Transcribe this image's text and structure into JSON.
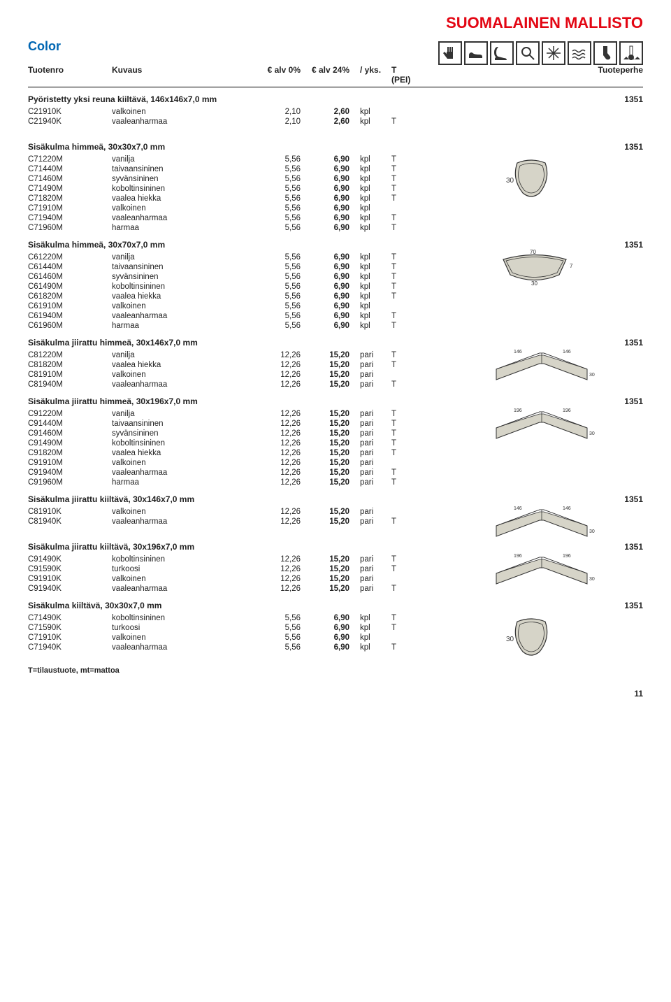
{
  "page_title": "SUOMALAINEN MALLISTO",
  "color_label": "Color",
  "headers": {
    "code": "Tuotenro",
    "desc": "Kuvaus",
    "price0": "€ alv 0%",
    "price24": "€ alv 24%",
    "unit": "/ yks.",
    "t": "T (PEI)",
    "family": "Tuoteperhe"
  },
  "footer": "T=tilaustuote, mt=mattoa",
  "page_num": "11",
  "sections": [
    {
      "title": "Pyöristetty yksi reuna kiiltävä, 146x146x7,0 mm",
      "family": "1351",
      "rows": [
        {
          "code": "C21910K",
          "desc": "valkoinen",
          "p1": "2,10",
          "p2": "2,60",
          "unit": "kpl",
          "t": ""
        },
        {
          "code": "C21940K",
          "desc": "vaaleanharmaa",
          "p1": "2,10",
          "p2": "2,60",
          "unit": "kpl",
          "t": "T"
        }
      ]
    },
    {
      "title": "Sisäkulma himmeä, 30x30x7,0 mm",
      "family": "1351",
      "diagram": "tri30",
      "rows": [
        {
          "code": "C71220M",
          "desc": "vanilja",
          "p1": "5,56",
          "p2": "6,90",
          "unit": "kpl",
          "t": "T"
        },
        {
          "code": "C71440M",
          "desc": "taivaansininen",
          "p1": "5,56",
          "p2": "6,90",
          "unit": "kpl",
          "t": "T"
        },
        {
          "code": "C71460M",
          "desc": "syvänsininen",
          "p1": "5,56",
          "p2": "6,90",
          "unit": "kpl",
          "t": "T"
        },
        {
          "code": "C71490M",
          "desc": "koboltinsininen",
          "p1": "5,56",
          "p2": "6,90",
          "unit": "kpl",
          "t": "T"
        },
        {
          "code": "C71820M",
          "desc": "vaalea hiekka",
          "p1": "5,56",
          "p2": "6,90",
          "unit": "kpl",
          "t": "T"
        },
        {
          "code": "C71910M",
          "desc": "valkoinen",
          "p1": "5,56",
          "p2": "6,90",
          "unit": "kpl",
          "t": ""
        },
        {
          "code": "C71940M",
          "desc": "vaaleanharmaa",
          "p1": "5,56",
          "p2": "6,90",
          "unit": "kpl",
          "t": "T"
        },
        {
          "code": "C71960M",
          "desc": "harmaa",
          "p1": "5,56",
          "p2": "6,90",
          "unit": "kpl",
          "t": "T"
        }
      ]
    },
    {
      "title": "Sisäkulma himmeä, 30x70x7,0 mm",
      "family": "1351",
      "diagram": "penta",
      "rows": [
        {
          "code": "C61220M",
          "desc": "vanilja",
          "p1": "5,56",
          "p2": "6,90",
          "unit": "kpl",
          "t": "T"
        },
        {
          "code": "C61440M",
          "desc": "taivaansininen",
          "p1": "5,56",
          "p2": "6,90",
          "unit": "kpl",
          "t": "T"
        },
        {
          "code": "C61460M",
          "desc": "syvänsininen",
          "p1": "5,56",
          "p2": "6,90",
          "unit": "kpl",
          "t": "T"
        },
        {
          "code": "C61490M",
          "desc": "koboltinsininen",
          "p1": "5,56",
          "p2": "6,90",
          "unit": "kpl",
          "t": "T"
        },
        {
          "code": "C61820M",
          "desc": "vaalea hiekka",
          "p1": "5,56",
          "p2": "6,90",
          "unit": "kpl",
          "t": "T"
        },
        {
          "code": "C61910M",
          "desc": "valkoinen",
          "p1": "5,56",
          "p2": "6,90",
          "unit": "kpl",
          "t": ""
        },
        {
          "code": "C61940M",
          "desc": "vaaleanharmaa",
          "p1": "5,56",
          "p2": "6,90",
          "unit": "kpl",
          "t": "T"
        },
        {
          "code": "C61960M",
          "desc": "harmaa",
          "p1": "5,56",
          "p2": "6,90",
          "unit": "kpl",
          "t": "T"
        }
      ]
    },
    {
      "title": "Sisäkulma jiirattu himmeä, 30x146x7,0 mm",
      "family": "1351",
      "diagram": "corner146",
      "rows": [
        {
          "code": "C81220M",
          "desc": "vanilja",
          "p1": "12,26",
          "p2": "15,20",
          "unit": "pari",
          "t": "T"
        },
        {
          "code": "C81820M",
          "desc": "vaalea hiekka",
          "p1": "12,26",
          "p2": "15,20",
          "unit": "pari",
          "t": "T"
        },
        {
          "code": "C81910M",
          "desc": "valkoinen",
          "p1": "12,26",
          "p2": "15,20",
          "unit": "pari",
          "t": ""
        },
        {
          "code": "C81940M",
          "desc": "vaaleanharmaa",
          "p1": "12,26",
          "p2": "15,20",
          "unit": "pari",
          "t": "T"
        }
      ]
    },
    {
      "title": "Sisäkulma jiirattu himmeä, 30x196x7,0 mm",
      "family": "1351",
      "diagram": "corner196",
      "rows": [
        {
          "code": "C91220M",
          "desc": "vanilja",
          "p1": "12,26",
          "p2": "15,20",
          "unit": "pari",
          "t": "T"
        },
        {
          "code": "C91440M",
          "desc": "taivaansininen",
          "p1": "12,26",
          "p2": "15,20",
          "unit": "pari",
          "t": "T"
        },
        {
          "code": "C91460M",
          "desc": "syvänsininen",
          "p1": "12,26",
          "p2": "15,20",
          "unit": "pari",
          "t": "T"
        },
        {
          "code": "C91490M",
          "desc": "koboltinsininen",
          "p1": "12,26",
          "p2": "15,20",
          "unit": "pari",
          "t": "T"
        },
        {
          "code": "C91820M",
          "desc": "vaalea hiekka",
          "p1": "12,26",
          "p2": "15,20",
          "unit": "pari",
          "t": "T"
        },
        {
          "code": "C91910M",
          "desc": "valkoinen",
          "p1": "12,26",
          "p2": "15,20",
          "unit": "pari",
          "t": ""
        },
        {
          "code": "C91940M",
          "desc": "vaaleanharmaa",
          "p1": "12,26",
          "p2": "15,20",
          "unit": "pari",
          "t": "T"
        },
        {
          "code": "C91960M",
          "desc": "harmaa",
          "p1": "12,26",
          "p2": "15,20",
          "unit": "pari",
          "t": "T"
        }
      ]
    },
    {
      "title": "Sisäkulma jiirattu kiiltävä, 30x146x7,0 mm",
      "family": "1351",
      "diagram": "corner146b",
      "rows": [
        {
          "code": "C81910K",
          "desc": "valkoinen",
          "p1": "12,26",
          "p2": "15,20",
          "unit": "pari",
          "t": ""
        },
        {
          "code": "C81940K",
          "desc": "vaaleanharmaa",
          "p1": "12,26",
          "p2": "15,20",
          "unit": "pari",
          "t": "T"
        }
      ]
    },
    {
      "title": "Sisäkulma jiirattu kiiltävä, 30x196x7,0 mm",
      "family": "1351",
      "diagram": "corner196b",
      "rows": [
        {
          "code": "C91490K",
          "desc": "koboltinsininen",
          "p1": "12,26",
          "p2": "15,20",
          "unit": "pari",
          "t": "T"
        },
        {
          "code": "C91590K",
          "desc": "turkoosi",
          "p1": "12,26",
          "p2": "15,20",
          "unit": "pari",
          "t": "T"
        },
        {
          "code": "C91910K",
          "desc": "valkoinen",
          "p1": "12,26",
          "p2": "15,20",
          "unit": "pari",
          "t": ""
        },
        {
          "code": "C91940K",
          "desc": "vaaleanharmaa",
          "p1": "12,26",
          "p2": "15,20",
          "unit": "pari",
          "t": "T"
        }
      ]
    },
    {
      "title": "Sisäkulma kiiltävä, 30x30x7,0 mm",
      "family": "1351",
      "diagram": "tri30b",
      "rows": [
        {
          "code": "C71490K",
          "desc": "koboltinsininen",
          "p1": "5,56",
          "p2": "6,90",
          "unit": "kpl",
          "t": "T"
        },
        {
          "code": "C71590K",
          "desc": "turkoosi",
          "p1": "5,56",
          "p2": "6,90",
          "unit": "kpl",
          "t": "T"
        },
        {
          "code": "C71910K",
          "desc": "valkoinen",
          "p1": "5,56",
          "p2": "6,90",
          "unit": "kpl",
          "t": ""
        },
        {
          "code": "C71940K",
          "desc": "vaaleanharmaa",
          "p1": "5,56",
          "p2": "6,90",
          "unit": "kpl",
          "t": "T"
        }
      ]
    }
  ],
  "diagrams": {
    "fill": "#d6d4c8",
    "stroke": "#333333"
  }
}
